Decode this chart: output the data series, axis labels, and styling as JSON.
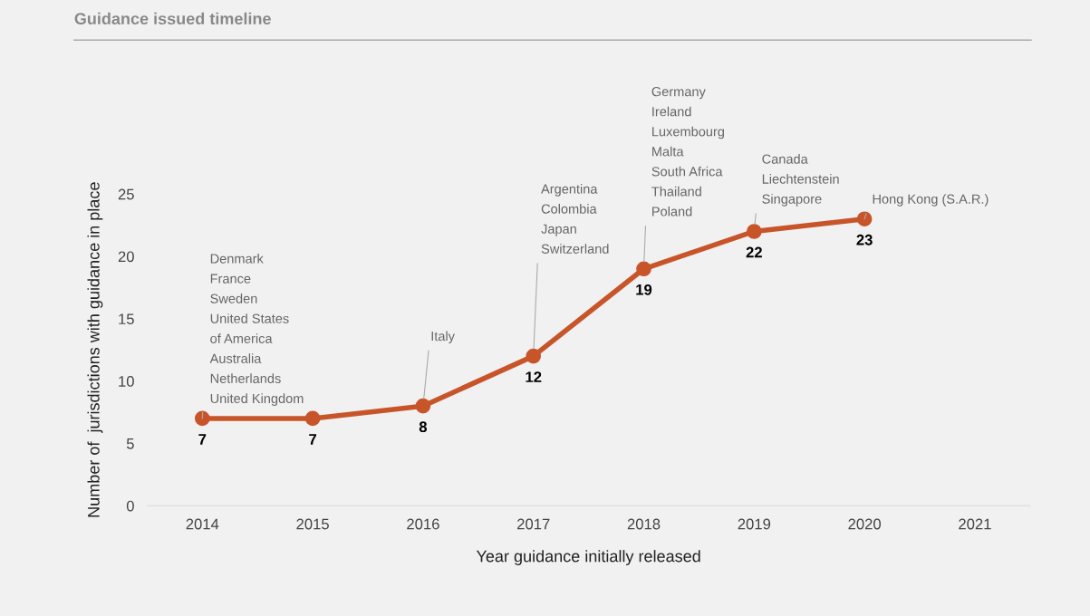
{
  "chart_data": {
    "type": "line",
    "title": "Guidance issued timeline",
    "xlabel": "Year guidance initially released",
    "ylabel": "Number of  jurisdictions with guidance in place",
    "categories": [
      "2014",
      "2015",
      "2016",
      "2017",
      "2018",
      "2019",
      "2020",
      "2021"
    ],
    "series": [
      {
        "color": "#c8552a",
        "values": [
          7,
          7,
          8,
          12,
          19,
          22,
          23,
          null
        ]
      }
    ],
    "ylim": [
      0,
      25
    ],
    "yticks": [
      0,
      5,
      10,
      15,
      20,
      25
    ],
    "data_labels": true,
    "marker": "circle",
    "line_style": "solid",
    "grid": false,
    "legend": false,
    "annotations": [
      {
        "text": "Denmark\nFrance\nSweden\nUnited States\nof America\nAustralia\nNetherlands\nUnited Kingdom",
        "x": "2014",
        "y": 7
      },
      {
        "text": "Italy",
        "x": "2016",
        "y": 8
      },
      {
        "text": "Argentina\nColombia\nJapan\nSwitzerland",
        "x": "2017",
        "y": 12
      },
      {
        "text": "Germany\nIreland\nLuxembourg\nMalta\nSouth Africa\nThailand\nPoland",
        "x": "2018",
        "y": 19
      },
      {
        "text": "Canada\nLiechtenstein\nSingapore",
        "x": "2019",
        "y": 22
      },
      {
        "text": "Hong Kong (S.A.R.)",
        "x": "2020",
        "y": 23
      }
    ]
  }
}
